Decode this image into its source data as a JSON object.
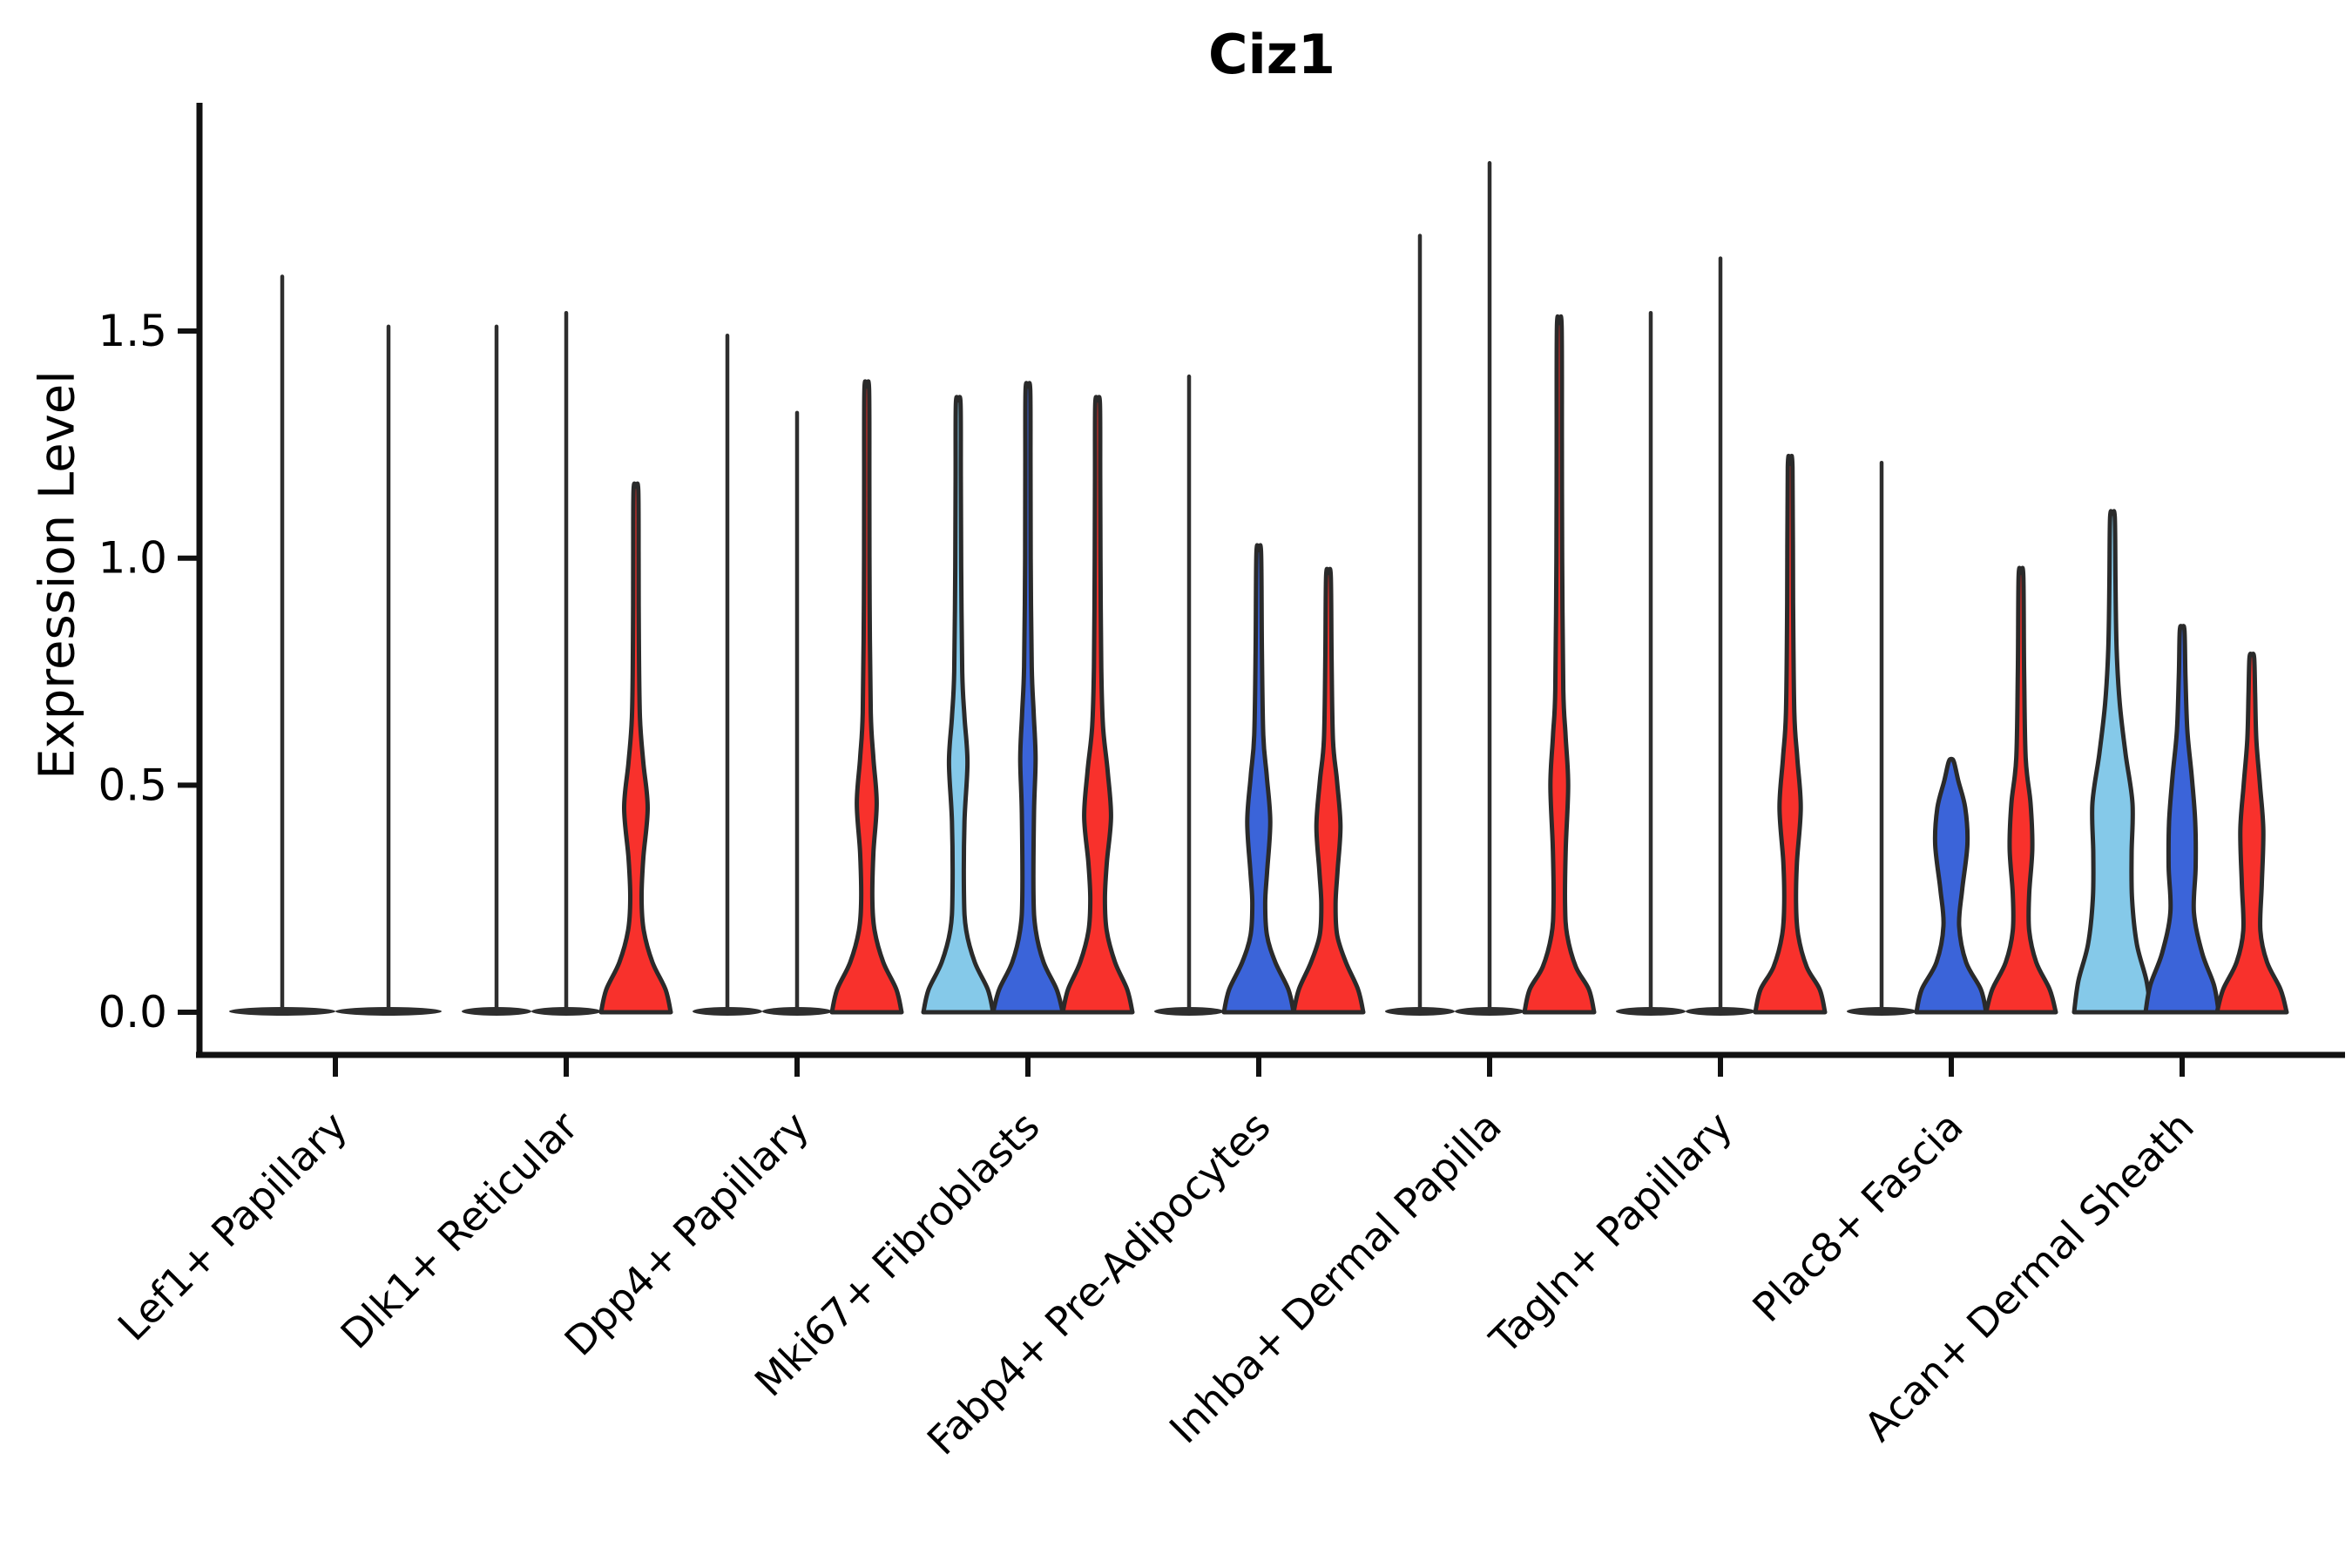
{
  "title": "Ciz1",
  "axes": {
    "ylabel": "Expression Level",
    "ytick_labels": [
      "0.0",
      "0.5",
      "1.0",
      "1.5"
    ]
  },
  "colors": {
    "lightblue": "#85C9E9",
    "blue": "#3B64D9",
    "red": "#F8312C",
    "outline": "#2A2A2A",
    "thin_line": "#2E2E2E",
    "text": "#000000"
  },
  "chart_data": {
    "type": "violin",
    "title": "Ciz1",
    "xlabel": "",
    "ylabel": "Expression Level",
    "ylim": [
      -0.09,
      2.0
    ],
    "yticks": [
      0.0,
      0.5,
      1.0,
      1.5
    ],
    "grid": false,
    "legend": "none",
    "categories": [
      "Lef1+ Papillary",
      "Dlk1+ Reticular",
      "Dpp4+ Papillary",
      "Mki67+ Fibroblasts",
      "Fabp4+ Pre-Adipocytes",
      "Inhba+ Dermal Papilla",
      "Tagln+ Papillary",
      "Plac8+ Fascia",
      "Acan+ Dermal Sheath"
    ],
    "series_note": "three split conditions per cluster rendered left-to-right: lightblue, blue, red; most mass at 0 expression",
    "groups": [
      {
        "label": "Lef1+ Papillary",
        "violins": [
          {
            "condition": "lightblue",
            "style": "thin",
            "max": 1.62,
            "slot": 0
          },
          {
            "condition": "blue",
            "style": "thin",
            "max": 1.51,
            "slot": 1
          }
        ]
      },
      {
        "label": "Dlk1+ Reticular",
        "violins": [
          {
            "condition": "lightblue",
            "style": "thin",
            "max": 1.51,
            "slot": 0
          },
          {
            "condition": "blue",
            "style": "thin",
            "max": 1.54,
            "slot": 1
          },
          {
            "condition": "red",
            "style": "filled",
            "max": 1.15,
            "slot": 2,
            "profile": [
              [
                0,
                40
              ],
              [
                0.05,
                34
              ],
              [
                0.11,
                19
              ],
              [
                0.18,
                9
              ],
              [
                0.25,
                6.5
              ],
              [
                0.34,
                8.5
              ],
              [
                0.45,
                13.5
              ],
              [
                0.55,
                8.5
              ],
              [
                0.65,
                4.6
              ],
              [
                0.82,
                3.4
              ],
              [
                1.0,
                3.1
              ],
              [
                1.15,
                2.7
              ]
            ]
          }
        ]
      },
      {
        "label": "Dpp4+ Papillary",
        "violins": [
          {
            "condition": "lightblue",
            "style": "thin",
            "max": 1.49,
            "slot": 0
          },
          {
            "condition": "blue",
            "style": "thin",
            "max": 1.32,
            "slot": 1
          },
          {
            "condition": "red",
            "style": "filled",
            "max": 1.37,
            "slot": 2,
            "profile": [
              [
                0,
                40
              ],
              [
                0.05,
                34
              ],
              [
                0.11,
                19
              ],
              [
                0.18,
                9
              ],
              [
                0.25,
                6.4
              ],
              [
                0.35,
                7.6
              ],
              [
                0.46,
                11.4
              ],
              [
                0.56,
                7.6
              ],
              [
                0.66,
                4.6
              ],
              [
                0.9,
                3.3
              ],
              [
                1.15,
                3.0
              ],
              [
                1.37,
                2.7
              ]
            ]
          }
        ]
      },
      {
        "label": "Mki67+ Fibroblasts",
        "violins": [
          {
            "condition": "lightblue",
            "style": "filled",
            "max": 1.34,
            "slot": 0,
            "profile": [
              [
                0,
                40
              ],
              [
                0.05,
                34
              ],
              [
                0.11,
                19
              ],
              [
                0.18,
                9.2
              ],
              [
                0.26,
                6.6
              ],
              [
                0.42,
                7.2
              ],
              [
                0.55,
                10.6
              ],
              [
                0.65,
                7.2
              ],
              [
                0.75,
                4.6
              ],
              [
                0.98,
                3.4
              ],
              [
                1.18,
                3.0
              ],
              [
                1.34,
                2.7
              ]
            ]
          },
          {
            "condition": "blue",
            "style": "filled",
            "max": 1.37,
            "slot": 1,
            "profile": [
              [
                0,
                40
              ],
              [
                0.05,
                33
              ],
              [
                0.11,
                18
              ],
              [
                0.18,
                9
              ],
              [
                0.26,
                6.4
              ],
              [
                0.44,
                7
              ],
              [
                0.56,
                8.8
              ],
              [
                0.66,
                6.6
              ],
              [
                0.76,
                4.4
              ],
              [
                1.0,
                3.2
              ],
              [
                1.2,
                3.0
              ],
              [
                1.37,
                2.7
              ]
            ]
          },
          {
            "condition": "red",
            "style": "filled",
            "max": 1.34,
            "slot": 2,
            "profile": [
              [
                0,
                40
              ],
              [
                0.05,
                34
              ],
              [
                0.11,
                20
              ],
              [
                0.18,
                10.4
              ],
              [
                0.25,
                8.4
              ],
              [
                0.33,
                10.6
              ],
              [
                0.43,
                15.4
              ],
              [
                0.53,
                11.6
              ],
              [
                0.63,
                6.2
              ],
              [
                0.76,
                4.2
              ],
              [
                1.0,
                3.3
              ],
              [
                1.18,
                3.0
              ],
              [
                1.34,
                2.7
              ]
            ]
          }
        ]
      },
      {
        "label": "Fabp4+ Pre-Adipocytes",
        "violins": [
          {
            "condition": "lightblue",
            "style": "thin",
            "max": 1.4,
            "slot": 0
          },
          {
            "condition": "blue",
            "style": "filled",
            "max": 1.01,
            "slot": 1,
            "profile": [
              [
                0,
                40
              ],
              [
                0.05,
                34
              ],
              [
                0.11,
                19
              ],
              [
                0.17,
                9.4
              ],
              [
                0.24,
                7.4
              ],
              [
                0.31,
                9.6
              ],
              [
                0.42,
                13.2
              ],
              [
                0.52,
                9.2
              ],
              [
                0.61,
                5.2
              ],
              [
                0.8,
                3.6
              ],
              [
                1.01,
                2.7
              ]
            ]
          },
          {
            "condition": "red",
            "style": "filled",
            "max": 0.96,
            "slot": 2,
            "profile": [
              [
                0,
                40
              ],
              [
                0.05,
                34
              ],
              [
                0.11,
                20
              ],
              [
                0.17,
                10
              ],
              [
                0.24,
                8.2
              ],
              [
                0.31,
                10.4
              ],
              [
                0.41,
                13.8
              ],
              [
                0.51,
                9.8
              ],
              [
                0.6,
                5.2
              ],
              [
                0.78,
                3.6
              ],
              [
                0.96,
                2.7
              ]
            ]
          }
        ]
      },
      {
        "label": "Inhba+ Dermal Papilla",
        "violins": [
          {
            "condition": "lightblue",
            "style": "thin",
            "max": 1.71,
            "slot": 0
          },
          {
            "condition": "blue",
            "style": "thin",
            "max": 1.87,
            "slot": 1
          },
          {
            "condition": "red",
            "style": "filled",
            "max": 1.51,
            "slot": 2,
            "profile": [
              [
                0,
                40
              ],
              [
                0.05,
                34
              ],
              [
                0.1,
                19
              ],
              [
                0.17,
                9
              ],
              [
                0.24,
                6.6
              ],
              [
                0.36,
                7.4
              ],
              [
                0.5,
                10.2
              ],
              [
                0.61,
                7.2
              ],
              [
                0.71,
                4.6
              ],
              [
                1.0,
                3.3
              ],
              [
                1.25,
                3.0
              ],
              [
                1.51,
                2.7
              ]
            ]
          }
        ]
      },
      {
        "label": "Tagln+ Papillary",
        "violins": [
          {
            "condition": "lightblue",
            "style": "thin",
            "max": 1.54,
            "slot": 0
          },
          {
            "condition": "blue",
            "style": "thin",
            "max": 1.66,
            "slot": 1
          },
          {
            "condition": "red",
            "style": "filled",
            "max": 1.2,
            "slot": 2,
            "profile": [
              [
                0,
                40
              ],
              [
                0.05,
                34
              ],
              [
                0.1,
                19
              ],
              [
                0.17,
                9.2
              ],
              [
                0.24,
                6.8
              ],
              [
                0.33,
                7.8
              ],
              [
                0.45,
                12.2
              ],
              [
                0.56,
                8.2
              ],
              [
                0.66,
                4.8
              ],
              [
                0.9,
                3.4
              ],
              [
                1.2,
                2.7
              ]
            ]
          }
        ]
      },
      {
        "label": "Plac8+ Fascia",
        "violins": [
          {
            "condition": "lightblue",
            "style": "thin",
            "max": 1.21,
            "slot": 0
          },
          {
            "condition": "blue",
            "style": "filled",
            "max": 0.55,
            "slot": 1,
            "profile": [
              [
                0,
                40
              ],
              [
                0.05,
                34
              ],
              [
                0.11,
                17
              ],
              [
                0.19,
                9
              ],
              [
                0.27,
                12.5
              ],
              [
                0.37,
                18.5
              ],
              [
                0.45,
                16
              ],
              [
                0.51,
                8
              ],
              [
                0.55,
                3.2
              ]
            ]
          },
          {
            "condition": "red",
            "style": "filled",
            "max": 0.96,
            "slot": 2,
            "profile": [
              [
                0,
                40
              ],
              [
                0.05,
                33
              ],
              [
                0.11,
                17.5
              ],
              [
                0.18,
                9.4
              ],
              [
                0.26,
                9.4
              ],
              [
                0.36,
                13
              ],
              [
                0.46,
                11
              ],
              [
                0.56,
                5.4
              ],
              [
                0.75,
                3.6
              ],
              [
                0.96,
                2.7
              ]
            ]
          }
        ]
      },
      {
        "label": "Acan+ Dermal Sheath",
        "violins": [
          {
            "condition": "lightblue",
            "style": "filled",
            "max": 1.09,
            "slot": 0,
            "profile": [
              [
                0,
                44
              ],
              [
                0.07,
                39
              ],
              [
                0.15,
                28
              ],
              [
                0.25,
                22.5
              ],
              [
                0.35,
                22
              ],
              [
                0.46,
                23
              ],
              [
                0.57,
                15
              ],
              [
                0.68,
                8.4
              ],
              [
                0.8,
                4.8
              ],
              [
                0.95,
                3.5
              ],
              [
                1.09,
                2.7
              ]
            ]
          },
          {
            "condition": "blue",
            "style": "filled",
            "max": 0.84,
            "slot": 1,
            "profile": [
              [
                0,
                42
              ],
              [
                0.06,
                36.5
              ],
              [
                0.13,
                23
              ],
              [
                0.22,
                13.5
              ],
              [
                0.32,
                15.5
              ],
              [
                0.42,
                15
              ],
              [
                0.52,
                11
              ],
              [
                0.62,
                6
              ],
              [
                0.74,
                3.8
              ],
              [
                0.84,
                2.7
              ]
            ]
          },
          {
            "condition": "red",
            "style": "filled",
            "max": 0.78,
            "slot": 2,
            "profile": [
              [
                0,
                40
              ],
              [
                0.05,
                33
              ],
              [
                0.11,
                17.5
              ],
              [
                0.18,
                9.8
              ],
              [
                0.28,
                11.4
              ],
              [
                0.4,
                13.2
              ],
              [
                0.5,
                9.4
              ],
              [
                0.6,
                5.2
              ],
              [
                0.7,
                3.8
              ],
              [
                0.78,
                2.7
              ]
            ]
          }
        ]
      }
    ]
  }
}
